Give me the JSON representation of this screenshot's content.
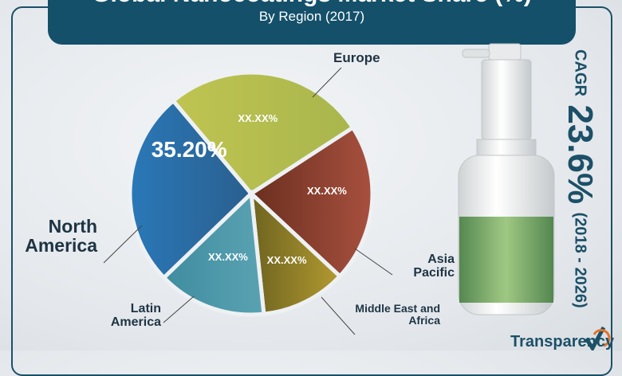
{
  "header": {
    "title": "Global Nanocoatings Market Share (%)",
    "subtitle": "By Region (2017)"
  },
  "chart_data": {
    "type": "pie",
    "title": "Global Nanocoatings Market Share (%)",
    "subtitle": "By Region (2017)",
    "categories": [
      "North America",
      "Europe",
      "Asia Pacific",
      "Middle East and Africa",
      "Latin America"
    ],
    "value_labels": [
      "35.20%",
      "XX.XX%",
      "XX.XX%",
      "XX.XX%",
      "XX.XX%"
    ],
    "values": [
      35.2,
      null,
      null,
      null,
      null
    ],
    "colors": [
      "#2e6ea6",
      "#b4bc4c",
      "#8e3d2c",
      "#8f7f27",
      "#4b97a8"
    ]
  },
  "labels": {
    "north_america": "North America",
    "europe": "Europe",
    "asia_pacific": "Asia Pacific",
    "mea": "Middle East and Africa",
    "latin_america": "Latin America"
  },
  "cagr": {
    "label": "CAGR",
    "value": "23.6%",
    "period": "(2018 - 2026)"
  },
  "logo": {
    "text": "Transparency"
  }
}
